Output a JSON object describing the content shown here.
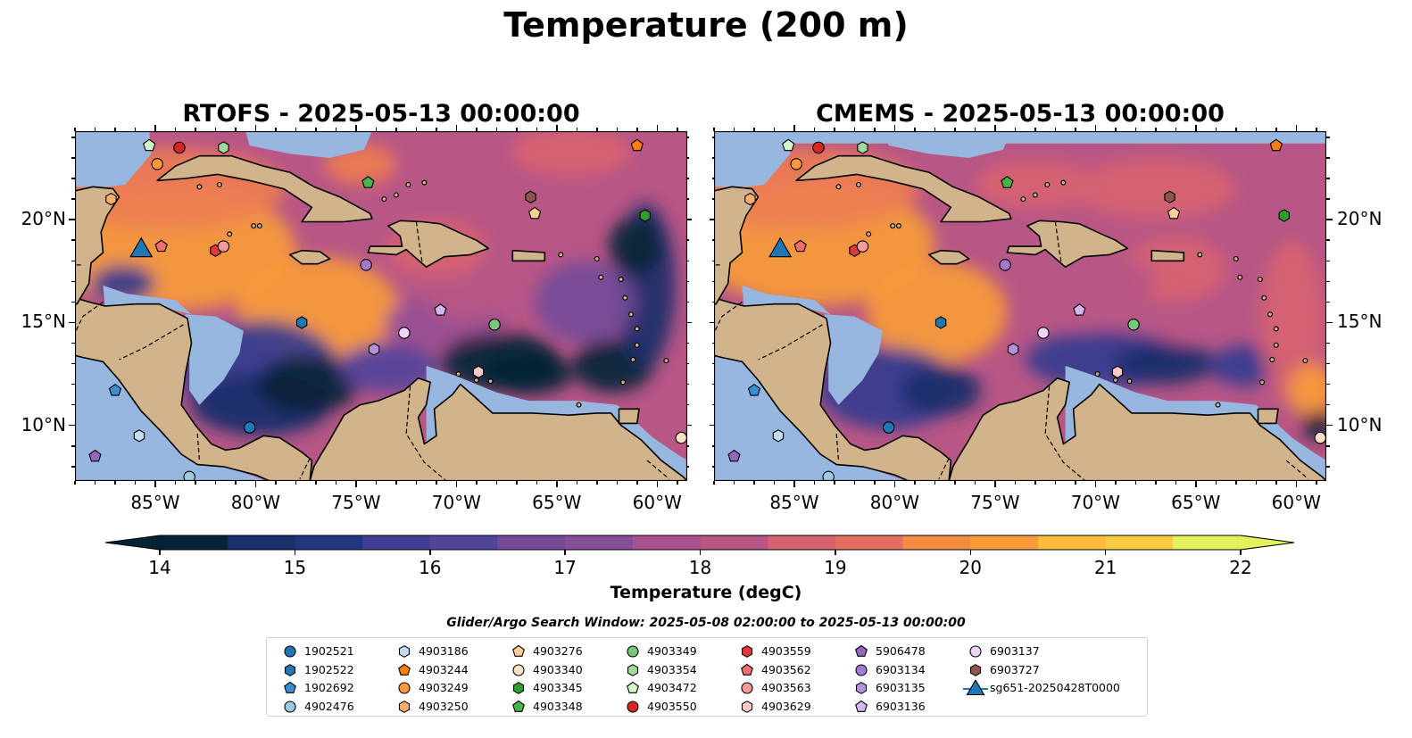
{
  "figure": {
    "title": "Temperature (200 m)",
    "search_window": "Glider/Argo Search Window: 2025-05-08 02:00:00 to 2025-05-13 00:00:00"
  },
  "panels": [
    {
      "title": "RTOFS - 2025-05-13 00:00:00"
    },
    {
      "title": "CMEMS - 2025-05-13 00:00:00"
    }
  ],
  "axes": {
    "lon_ticks": [
      "85°W",
      "80°W",
      "75°W",
      "70°W",
      "65°W",
      "60°W"
    ],
    "lon_values": [
      -85,
      -80,
      -75,
      -70,
      -65,
      -60
    ],
    "lat_ticks": [
      "20°N",
      "15°N",
      "10°N"
    ],
    "lat_values": [
      20,
      15,
      10
    ],
    "extent": {
      "lon_min": -89,
      "lon_max": -58.5,
      "lat_min": 7.3,
      "lat_max": 24.3
    }
  },
  "colorbar": {
    "label": "Temperature (degC)",
    "ticks": [
      "14",
      "15",
      "16",
      "17",
      "18",
      "19",
      "20",
      "21",
      "22"
    ],
    "min": 14,
    "max": 22,
    "step": 0.5,
    "colors": [
      "#062336",
      "#0e2a52",
      "#182f6a",
      "#233580",
      "#313a8f",
      "#403f96",
      "#52449a",
      "#63489b",
      "#744b9a",
      "#864e97",
      "#964f93",
      "#a7528e",
      "#b85686",
      "#c95b7d",
      "#d86370",
      "#e46f62",
      "#ee7d52",
      "#f48c44",
      "#f89c39",
      "#fbab36",
      "#fcbb3a",
      "#f9cc44",
      "#f1de52",
      "#e6ef5c"
    ]
  },
  "legend": [
    {
      "id": "1902521",
      "marker": "circle",
      "color": "#1f77b4"
    },
    {
      "id": "1902522",
      "marker": "hexagon",
      "color": "#1f77b4"
    },
    {
      "id": "1902692",
      "marker": "pentagon",
      "color": "#3a8fd3"
    },
    {
      "id": "4902476",
      "marker": "circle",
      "color": "#9ecae1"
    },
    {
      "id": "4903186",
      "marker": "hexagon",
      "color": "#c6dbef"
    },
    {
      "id": "4903244",
      "marker": "pentagon",
      "color": "#ff7f0e"
    },
    {
      "id": "4903249",
      "marker": "circle",
      "color": "#ff9838"
    },
    {
      "id": "4903250",
      "marker": "hexagon",
      "color": "#ffae6b"
    },
    {
      "id": "4903276",
      "marker": "pentagon",
      "color": "#ffcf9a"
    },
    {
      "id": "4903340",
      "marker": "circle",
      "color": "#fde0c5"
    },
    {
      "id": "4903345",
      "marker": "hexagon",
      "color": "#2ca02c"
    },
    {
      "id": "4903348",
      "marker": "pentagon",
      "color": "#46b546"
    },
    {
      "id": "4903349",
      "marker": "circle",
      "color": "#78c679"
    },
    {
      "id": "4903354",
      "marker": "hexagon",
      "color": "#a1d99b"
    },
    {
      "id": "4903472",
      "marker": "pentagon",
      "color": "#d4f5c9"
    },
    {
      "id": "4903550",
      "marker": "circle",
      "color": "#d62728"
    },
    {
      "id": "4903559",
      "marker": "hexagon",
      "color": "#e0393a"
    },
    {
      "id": "4903562",
      "marker": "pentagon",
      "color": "#ef6f6f"
    },
    {
      "id": "4903563",
      "marker": "circle",
      "color": "#f59a9a"
    },
    {
      "id": "4903629",
      "marker": "hexagon",
      "color": "#fcc9c9"
    },
    {
      "id": "5906478",
      "marker": "pentagon",
      "color": "#9467bd"
    },
    {
      "id": "6903134",
      "marker": "circle",
      "color": "#a27bd0"
    },
    {
      "id": "6903135",
      "marker": "hexagon",
      "color": "#b692de"
    },
    {
      "id": "6903136",
      "marker": "pentagon",
      "color": "#d3b8ef"
    },
    {
      "id": "6903137",
      "marker": "circle",
      "color": "#ecd6fa"
    },
    {
      "id": "6903727",
      "marker": "hexagon",
      "color": "#8c564b"
    },
    {
      "id": "sg651-20250428T0000",
      "marker": "triangle",
      "color": "#1f77b4"
    }
  ],
  "observations": [
    {
      "id": "1902521",
      "lon": -80.3,
      "lat": 9.9
    },
    {
      "id": "1902522",
      "lon": -77.7,
      "lat": 15.0
    },
    {
      "id": "1902692",
      "lon": -87.0,
      "lat": 11.7
    },
    {
      "id": "4902476",
      "lon": -83.3,
      "lat": 7.5
    },
    {
      "id": "4903186",
      "lon": -85.8,
      "lat": 9.5
    },
    {
      "id": "4903244",
      "lon": -61.0,
      "lat": 23.6
    },
    {
      "id": "4903249",
      "lon": -84.9,
      "lat": 22.7
    },
    {
      "id": "4903250",
      "lon": -87.2,
      "lat": 21.0
    },
    {
      "id": "4903276",
      "lon": -66.1,
      "lat": 20.3
    },
    {
      "id": "4903340",
      "lon": -58.8,
      "lat": 9.4
    },
    {
      "id": "4903345",
      "lon": -60.6,
      "lat": 20.2
    },
    {
      "id": "4903348",
      "lon": -74.4,
      "lat": 21.8
    },
    {
      "id": "4903349",
      "lon": -68.1,
      "lat": 14.9
    },
    {
      "id": "4903354",
      "lon": -81.6,
      "lat": 23.5
    },
    {
      "id": "4903472",
      "lon": -85.3,
      "lat": 23.6
    },
    {
      "id": "4903550",
      "lon": -83.8,
      "lat": 23.5
    },
    {
      "id": "4903559",
      "lon": -82.0,
      "lat": 18.5
    },
    {
      "id": "4903562",
      "lon": -84.7,
      "lat": 18.7
    },
    {
      "id": "4903563",
      "lon": -81.6,
      "lat": 18.7
    },
    {
      "id": "4903629",
      "lon": -68.9,
      "lat": 12.6
    },
    {
      "id": "5906478",
      "lon": -88.0,
      "lat": 8.5
    },
    {
      "id": "6903134",
      "lon": -74.5,
      "lat": 17.8
    },
    {
      "id": "6903135",
      "lon": -74.1,
      "lat": 13.7
    },
    {
      "id": "6903136",
      "lon": -70.8,
      "lat": 15.6
    },
    {
      "id": "6903137",
      "lon": -72.6,
      "lat": 14.5
    },
    {
      "id": "6903727",
      "lon": -66.3,
      "lat": 21.1
    },
    {
      "id": "sg651-20250428T0000",
      "lon": -85.7,
      "lat": 18.5
    }
  ],
  "colors": {
    "land": "#d2b48c",
    "shallow_mask": "#97b6e0",
    "glider": "#1f77b4"
  }
}
